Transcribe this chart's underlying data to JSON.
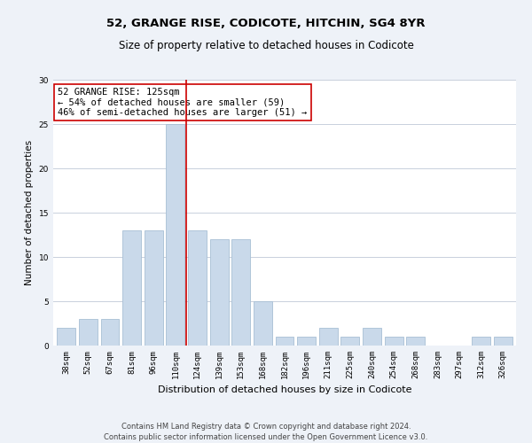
{
  "title": "52, GRANGE RISE, CODICOTE, HITCHIN, SG4 8YR",
  "subtitle": "Size of property relative to detached houses in Codicote",
  "xlabel": "Distribution of detached houses by size in Codicote",
  "ylabel": "Number of detached properties",
  "categories": [
    "38sqm",
    "52sqm",
    "67sqm",
    "81sqm",
    "96sqm",
    "110sqm",
    "124sqm",
    "139sqm",
    "153sqm",
    "168sqm",
    "182sqm",
    "196sqm",
    "211sqm",
    "225sqm",
    "240sqm",
    "254sqm",
    "268sqm",
    "283sqm",
    "297sqm",
    "312sqm",
    "326sqm"
  ],
  "values": [
    2,
    3,
    3,
    13,
    13,
    25,
    13,
    12,
    12,
    5,
    1,
    1,
    2,
    1,
    2,
    1,
    1,
    0,
    0,
    1,
    1
  ],
  "bar_color": "#c9d9ea",
  "bar_edge_color": "#a8bfd4",
  "vline_x": 5.5,
  "vline_color": "#cc0000",
  "annotation_text": "52 GRANGE RISE: 125sqm\n← 54% of detached houses are smaller (59)\n46% of semi-detached houses are larger (51) →",
  "annotation_box_color": "#ffffff",
  "annotation_box_edge_color": "#cc0000",
  "ylim": [
    0,
    30
  ],
  "yticks": [
    0,
    5,
    10,
    15,
    20,
    25,
    30
  ],
  "footer_text": "Contains HM Land Registry data © Crown copyright and database right 2024.\nContains public sector information licensed under the Open Government Licence v3.0.",
  "bg_color": "#eef2f8",
  "plot_bg_color": "#ffffff",
  "grid_color": "#c8d0dc",
  "title_fontsize": 9.5,
  "subtitle_fontsize": 8.5,
  "xlabel_fontsize": 8,
  "ylabel_fontsize": 7.5,
  "tick_fontsize": 6.5,
  "annotation_fontsize": 7.5,
  "footer_fontsize": 6.0
}
